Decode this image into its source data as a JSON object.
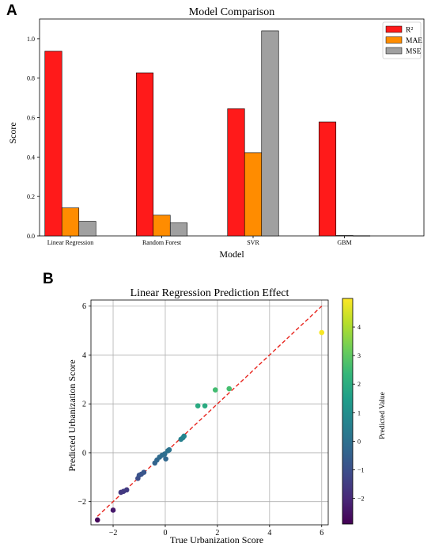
{
  "panels": {
    "a": "A",
    "b": "B"
  },
  "chart_data": [
    {
      "type": "bar",
      "title": "Model Comparison",
      "xlabel": "Model",
      "ylabel": "Score",
      "categories": [
        "Linear Regression",
        "Random Forest",
        "SVR",
        "GBM"
      ],
      "series": [
        {
          "name": "R²",
          "color": "#ff1a1a",
          "values": [
            0.937,
            0.827,
            0.645,
            0.578
          ]
        },
        {
          "name": "MAE",
          "color": "#ff8c00",
          "values": [
            0.142,
            0.105,
            0.422,
            0.002
          ]
        },
        {
          "name": "MSE",
          "color": "#a0a0a0",
          "values": [
            0.074,
            0.066,
            1.04,
            0.001
          ]
        }
      ],
      "ylim": [
        0,
        1.1
      ],
      "yticks": [
        "0.0",
        "0.2",
        "0.4",
        "0.6",
        "0.8",
        "1.0"
      ],
      "legend": "top-right",
      "grid": false
    },
    {
      "type": "scatter",
      "title": "Linear Regression Prediction Effect",
      "xlabel": "True Urbanization Score",
      "ylabel": "Predicted Urbanization Score",
      "colorbar_label": "Predicted Value",
      "xlim": [
        -2.85,
        6.25
      ],
      "ylim": [
        -2.95,
        6.25
      ],
      "xticks": [
        "−2",
        "0",
        "2",
        "4",
        "6"
      ],
      "yticks": [
        "−2",
        "0",
        "2",
        "4",
        "6"
      ],
      "colorbar_ticks": [
        "−2",
        "−1",
        "0",
        "1",
        "2",
        "3",
        "4"
      ],
      "colorbar_range": [
        -2.9,
        5.0
      ],
      "grid": true,
      "reference_line": {
        "style": "dashed",
        "color": "#e8261f",
        "from": [
          -2.6,
          -2.6
        ],
        "to": [
          6,
          6
        ]
      },
      "points": [
        {
          "x": -2.6,
          "y": -2.75
        },
        {
          "x": -2.0,
          "y": -2.35
        },
        {
          "x": -1.7,
          "y": -1.62
        },
        {
          "x": -1.6,
          "y": -1.58
        },
        {
          "x": -1.48,
          "y": -1.52
        },
        {
          "x": -1.05,
          "y": -1.05
        },
        {
          "x": -1.0,
          "y": -0.92
        },
        {
          "x": -0.92,
          "y": -0.88
        },
        {
          "x": -0.82,
          "y": -0.8
        },
        {
          "x": -0.4,
          "y": -0.42
        },
        {
          "x": -0.32,
          "y": -0.3
        },
        {
          "x": -0.22,
          "y": -0.18
        },
        {
          "x": -0.12,
          "y": -0.1
        },
        {
          "x": -0.02,
          "y": -0.05
        },
        {
          "x": 0.02,
          "y": -0.25
        },
        {
          "x": 0.1,
          "y": 0.08
        },
        {
          "x": 0.15,
          "y": 0.12
        },
        {
          "x": 0.6,
          "y": 0.55
        },
        {
          "x": 0.68,
          "y": 0.62
        },
        {
          "x": 0.72,
          "y": 0.68
        },
        {
          "x": 1.25,
          "y": 1.92
        },
        {
          "x": 1.52,
          "y": 1.92
        },
        {
          "x": 1.92,
          "y": 2.57
        },
        {
          "x": 2.45,
          "y": 2.62
        },
        {
          "x": 6.0,
          "y": 4.92
        }
      ]
    }
  ]
}
